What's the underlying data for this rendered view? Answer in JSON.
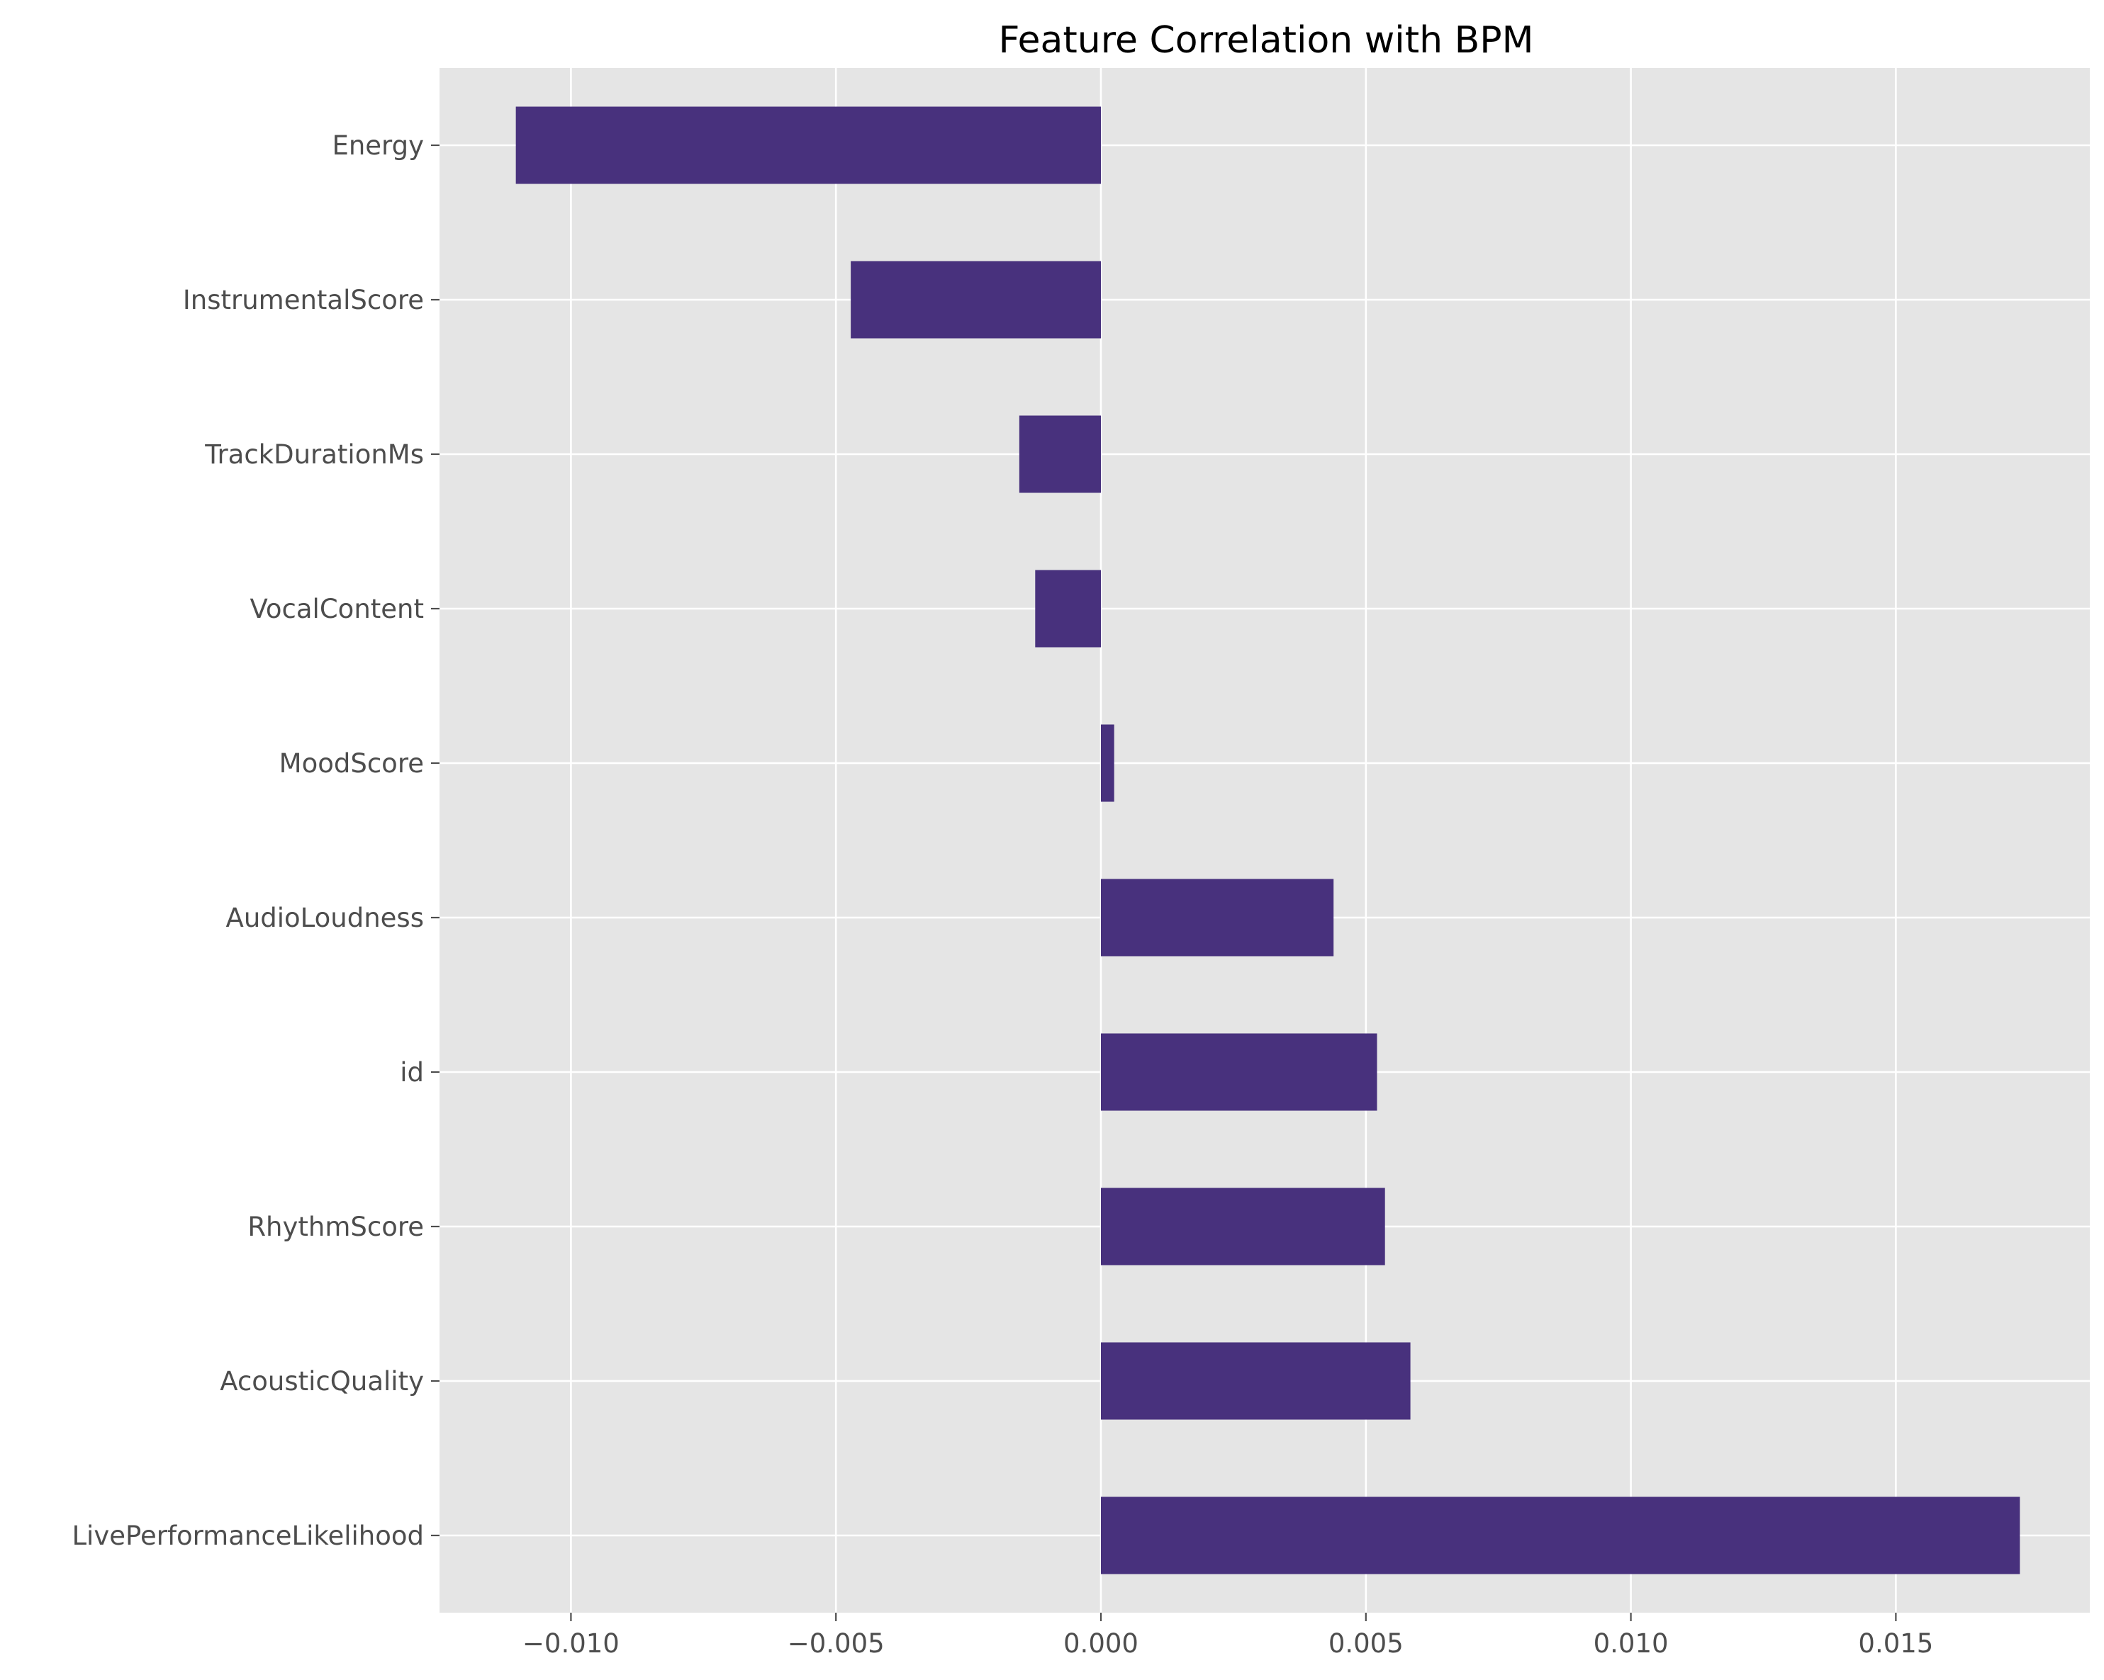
{
  "chart_data": {
    "type": "bar",
    "orientation": "horizontal",
    "title": "Feature Correlation with BPM",
    "xlabel": "",
    "ylabel": "",
    "categories": [
      "Energy",
      "InstrumentalScore",
      "TrackDurationMs",
      "VocalContent",
      "MoodScore",
      "AudioLoudness",
      "id",
      "RhythmScore",
      "AcousticQuality",
      "LivePerformanceLikelihood"
    ],
    "values": [
      -0.01104,
      -0.00472,
      -0.00154,
      -0.00124,
      0.00025,
      0.00439,
      0.00521,
      0.00536,
      0.00584,
      0.01734
    ],
    "xlim": [
      -0.01248,
      0.01866
    ],
    "xticks": [
      -0.01,
      -0.005,
      0.0,
      0.005,
      0.01,
      0.015
    ],
    "xtick_labels": [
      "−0.010",
      "−0.005",
      "0.000",
      "0.005",
      "0.010",
      "0.015"
    ],
    "grid": true,
    "legend": "none",
    "colors": {
      "bar": "#48317d",
      "plot_background": "#e5e5e5",
      "grid": "#ffffff",
      "tick_text": "#4d4d4d",
      "title_text": "#000000"
    }
  }
}
